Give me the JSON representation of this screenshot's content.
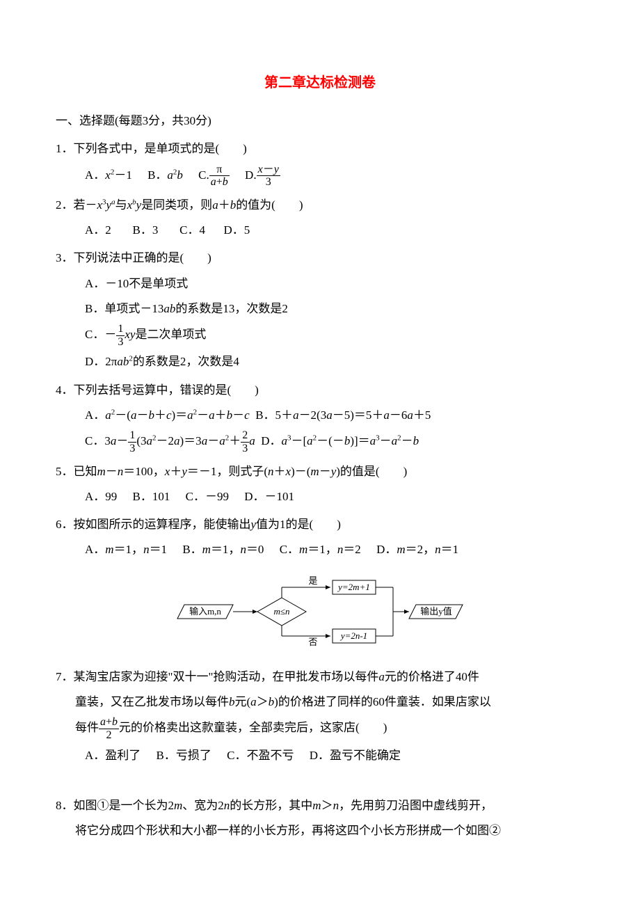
{
  "title": "第二章达标检测卷",
  "section1_heading": "一、选择题(每题3分，共30分)",
  "q1": {
    "text": "1．下列各式中，是单项式的是(　　)",
    "optA_prefix": "A．",
    "optA_content_html": "<span class='ital'>x</span><sup>2</sup>－1",
    "optB_prefix": "B．",
    "optB_content_html": "<span class='ital'>a</span><sup>2</sup><span class='ital'>b</span>",
    "optC_prefix": "C.",
    "optC_num": "π",
    "optC_den_html": "<span class='ital'>a</span>+<span class='ital'>b</span>",
    "optD_prefix": "D.",
    "optD_num_html": "<span class='ital'>x</span>－<span class='ital'>y</span>",
    "optD_den": "3"
  },
  "q2": {
    "text_html": "2．若－<span class='ital'>x</span><sup>3</sup><span class='ital'>y</span><sup><span class='ital'>a</span></sup>与<span class='ital'>x</span><sup><span class='ital'>b</span></sup><span class='ital'>y</span>是同类项，则<span class='ital'>a</span>＋<span class='ital'>b</span>的值为(　　)",
    "optA": "A．2",
    "optB": "B．3",
    "optC": "C．4",
    "optD": "D．5"
  },
  "q3": {
    "text": "3．下列说法中正确的是(　　)",
    "optA": "A．－10不是单项式",
    "optB_html": "B．单项式－13<span class='ital'>ab</span>的系数是13，次数是2",
    "optC_prefix": "C．－",
    "optC_num": "1",
    "optC_den": "3",
    "optC_suffix_html": "<span class='ital'>xy</span>是二次单项式",
    "optD_html": "D．2π<span class='ital'>ab</span><sup>2</sup>的系数是2，次数是4"
  },
  "q4": {
    "text": "4．下列去括号运算中，错误的是(　　)",
    "optA_html": "A．<span class='ital'>a</span><sup>2</sup>－(<span class='ital'>a</span>－<span class='ital'>b</span>＋<span class='ital'>c</span>)＝<span class='ital'>a</span><sup>2</sup>－<span class='ital'>a</span>＋<span class='ital'>b</span>－<span class='ital'>c</span>",
    "optB_html": "B．5＋<span class='ital'>a</span>－2(3<span class='ital'>a</span>－5)＝5＋<span class='ital'>a</span>－6<span class='ital'>a</span>＋5",
    "optC_prefix_html": "C．3<span class='ital'>a</span>－",
    "optC_frac1_num": "1",
    "optC_frac1_den": "3",
    "optC_mid_html": "(3<span class='ital'>a</span><sup>2</sup>－2<span class='ital'>a</span>)＝3<span class='ital'>a</span>－<span class='ital'>a</span><sup>2</sup>＋",
    "optC_frac2_num": "2",
    "optC_frac2_den": "3",
    "optC_suffix_html": "<span class='ital'>a</span>",
    "optD_html": "D．<span class='ital'>a</span><sup>3</sup>－[<span class='ital'>a</span><sup>2</sup>－(－<span class='ital'>b</span>)]＝<span class='ital'>a</span><sup>3</sup>－<span class='ital'>a</span><sup>2</sup>－<span class='ital'>b</span>"
  },
  "q5": {
    "text_html": "5．已知<span class='ital'>m</span>－<span class='ital'>n</span>＝100，<span class='ital'>x</span>＋<span class='ital'>y</span>＝－1，则式子(<span class='ital'>n</span>＋<span class='ital'>x</span>)－(<span class='ital'>m</span>－<span class='ital'>y</span>)的值是(　　)",
    "optA": "A．99",
    "optB": "B．101",
    "optC": "C．－99",
    "optD": "D．－101"
  },
  "q6": {
    "text_html": "6．按如图所示的运算程序，能使输出<span class='ital'>y</span>值为1的是(　　)",
    "optA_html": "A．<span class='ital'>m</span>＝1，<span class='ital'>n</span>＝1",
    "optB_html": "B．<span class='ital'>m</span>＝1，<span class='ital'>n</span>＝0",
    "optC_html": "C．<span class='ital'>m</span>＝1，<span class='ital'>n</span>＝2",
    "optD_html": "D．<span class='ital'>m</span>＝2，<span class='ital'>n</span>＝1"
  },
  "flowchart": {
    "input_label": "输入m,n",
    "decision_label": "m≤n",
    "yes_label": "是",
    "no_label": "否",
    "top_box": "y=2m+1",
    "bottom_box": "y=2n-1",
    "output_label": "输出y值",
    "stroke_color": "#000000",
    "fill_color": "#ffffff",
    "fontsize": 13
  },
  "q7": {
    "text_part1_html": "7．某淘宝店家为迎接\"双十一\"抢购活动，在甲批发市场以每件<span class='ital'>a</span>元的价格进了40件",
    "text_part2_html": "童装，又在乙批发市场以每件<span class='ital'>b</span>元(<span class='ital'>a</span>＞<span class='ital'>b</span>)的价格进了同样的60件童装．如果店家以",
    "text_part3_prefix": "每件",
    "frac_num_html": "<span class='ital'>a</span>+<span class='ital'>b</span>",
    "frac_den": "2",
    "text_part3_suffix": "元的价格卖出这款童装，全部卖完后，这家店(　　)",
    "optA": "A．盈利了",
    "optB": "B．亏损了",
    "optC": "C．不盈不亏",
    "optD": "D．盈亏不能确定"
  },
  "q8": {
    "text_part1_html": "8．如图①是一个长为2<span class='ital'>m</span>、宽为2<span class='ital'>n</span>的长方形，其中<span class='ital'>m</span>＞<span class='ital'>n</span>，先用剪刀沿图中虚线剪开，",
    "text_part2": "将它分成四个形状和大小都一样的小长方形，再将这四个小长方形拼成一个如图②"
  }
}
